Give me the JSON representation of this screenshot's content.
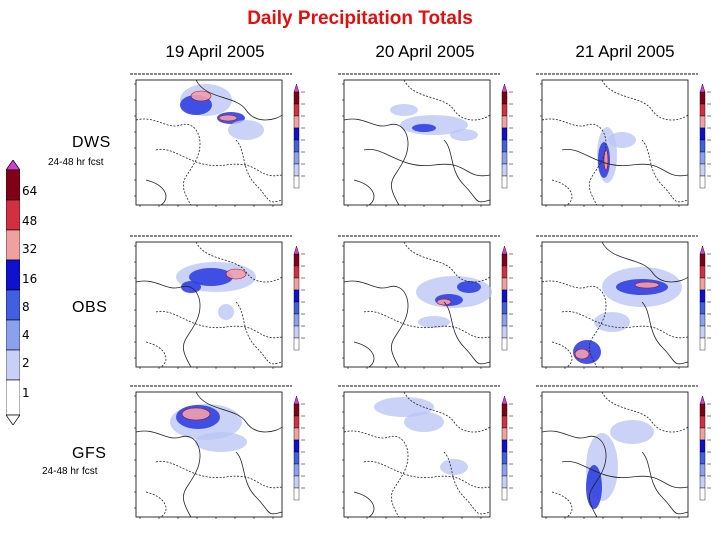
{
  "title": "Daily Precipitation Totals",
  "columns": [
    "19 April 2005",
    "20 April 2005",
    "21 April 2005"
  ],
  "rows": [
    {
      "label": "DWS",
      "sublabel": "24-48 hr fcst"
    },
    {
      "label": "OBS",
      "sublabel": ""
    },
    {
      "label": "GFS",
      "sublabel": "24-48 hr fcst"
    }
  ],
  "colorbar": {
    "levels": [
      "64",
      "48",
      "32",
      "16",
      "8",
      "4",
      "2",
      "1"
    ],
    "colors": [
      "#d040d0",
      "#800018",
      "#d03040",
      "#f0a0a0",
      "#1010d0",
      "#4060e0",
      "#8ca0f0",
      "#c8d0f8",
      "#ffffff"
    ]
  },
  "colors": {
    "title": "#e01010",
    "heavy": "#f0a0b0",
    "medium": "#3040e0",
    "light": "#b8c4f4"
  }
}
